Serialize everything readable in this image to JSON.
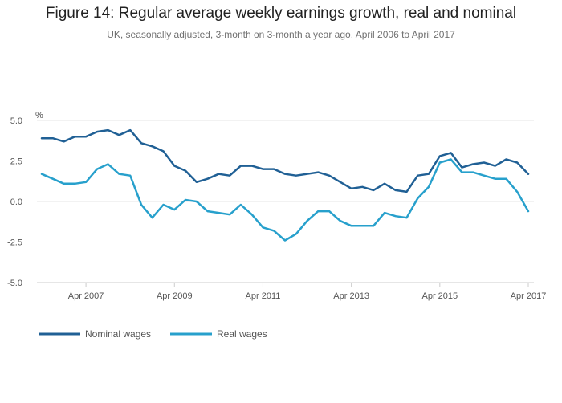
{
  "chart_data": {
    "type": "line",
    "title": "Figure 14: Regular average weekly earnings growth, real and nominal",
    "subtitle": "UK, seasonally adjusted, 3-month on 3-month a year ago, April 2006 to April 2017",
    "ylabel": "%",
    "xlabel": "",
    "ylim": [
      -5.0,
      5.0
    ],
    "y_ticks": [
      "5.0",
      "2.5",
      "0.0",
      "-2.5",
      "-5.0"
    ],
    "y_tick_values": [
      5.0,
      2.5,
      0.0,
      -2.5,
      -5.0
    ],
    "x_start": 2006.25,
    "x_end": 2017.25,
    "x_step": 0.25,
    "x_ticks": [
      {
        "label": "Apr 2007",
        "value": 2007.25
      },
      {
        "label": "Apr 2009",
        "value": 2009.25
      },
      {
        "label": "Apr 2011",
        "value": 2011.25
      },
      {
        "label": "Apr 2013",
        "value": 2013.25
      },
      {
        "label": "Apr 2015",
        "value": 2015.25
      },
      {
        "label": "Apr 2017",
        "value": 2017.25
      }
    ],
    "grid": true,
    "legend_position": "bottom-left",
    "series": [
      {
        "name": "Nominal wages",
        "color": "#206095",
        "values": [
          3.9,
          3.9,
          3.7,
          4.0,
          4.0,
          4.3,
          4.4,
          4.1,
          4.4,
          3.6,
          3.4,
          3.1,
          2.2,
          1.9,
          1.2,
          1.4,
          1.7,
          1.6,
          2.2,
          2.2,
          2.0,
          2.0,
          1.7,
          1.6,
          1.7,
          1.8,
          1.6,
          1.2,
          0.8,
          0.9,
          0.7,
          1.1,
          0.7,
          0.6,
          1.6,
          1.7,
          2.8,
          3.0,
          2.1,
          2.3,
          2.4,
          2.2,
          2.6,
          2.4,
          1.7
        ]
      },
      {
        "name": "Real wages",
        "color": "#27a0cc",
        "values": [
          1.7,
          1.4,
          1.1,
          1.1,
          1.2,
          2.0,
          2.3,
          1.7,
          1.6,
          -0.2,
          -1.0,
          -0.2,
          -0.5,
          0.1,
          0.0,
          -0.6,
          -0.7,
          -0.8,
          -0.2,
          -0.8,
          -1.6,
          -1.8,
          -2.4,
          -2.0,
          -1.2,
          -0.6,
          -0.6,
          -1.2,
          -1.5,
          -1.5,
          -1.5,
          -0.7,
          -0.9,
          -1.0,
          0.2,
          0.9,
          2.4,
          2.6,
          1.8,
          1.8,
          1.6,
          1.4,
          1.4,
          0.6,
          -0.6
        ]
      }
    ]
  }
}
